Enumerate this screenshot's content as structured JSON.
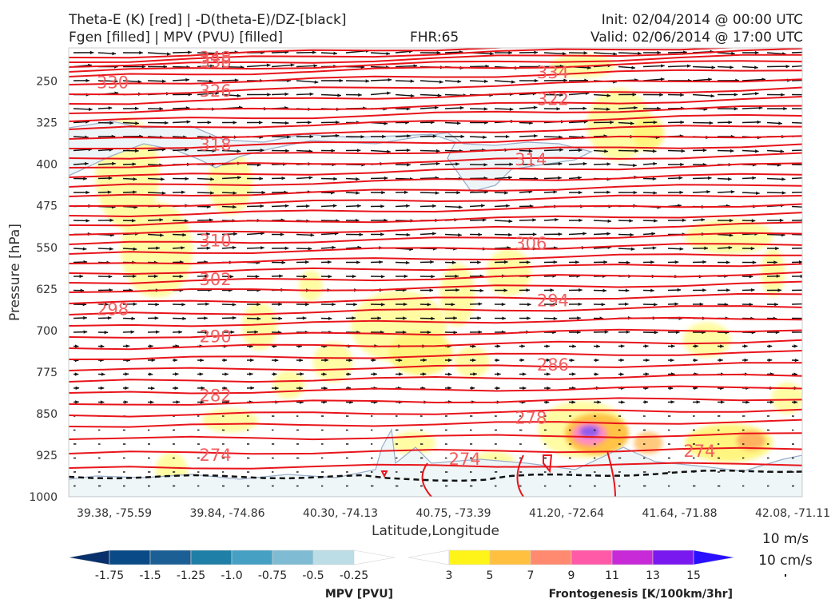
{
  "header": {
    "title_left_1": "Theta-E (K) [red] | -D(theta-E)/DZ-[black]",
    "title_left_2": "Fgen [filled] | MPV (PVU) [filled]",
    "fhr": "FHR:65",
    "init": "Init: 02/04/2014 @ 00:00 UTC",
    "valid": "Valid: 02/06/2014 @ 17:00 UTC"
  },
  "chart_data": {
    "type": "cross-section",
    "xlabel": "Latitude,Longitude",
    "ylabel": "Pressure [hPa]",
    "x_ticks": [
      "39.38, -75.59",
      "39.84, -74.86",
      "40.30, -74.13",
      "40.75, -73.39",
      "41.20, -72.64",
      "41.64, -71.88",
      "42.08, -71.11"
    ],
    "y_ticks": [
      250,
      325,
      400,
      475,
      550,
      625,
      700,
      775,
      850,
      925,
      1000
    ],
    "ylim": [
      1000,
      190
    ],
    "theta_e_contours": [
      {
        "label": "348",
        "p": 208,
        "pos": 0.2
      },
      {
        "label": "338",
        "p": 215,
        "pos": 0.2
      },
      {
        "label": "334",
        "p": 235,
        "pos": 0.66
      },
      {
        "label": "330",
        "p": 253,
        "pos": 0.06
      },
      {
        "label": "326",
        "p": 268,
        "pos": 0.2
      },
      {
        "label": "322",
        "p": 283,
        "pos": 0.66
      },
      {
        "label": "318",
        "p": 365,
        "pos": 0.2
      },
      {
        "label": "314",
        "p": 392,
        "pos": 0.63
      },
      {
        "label": "310",
        "p": 538,
        "pos": 0.2
      },
      {
        "label": "306",
        "p": 543,
        "pos": 0.63
      },
      {
        "label": "302",
        "p": 608,
        "pos": 0.2
      },
      {
        "label": "298",
        "p": 662,
        "pos": 0.06
      },
      {
        "label": "294",
        "p": 646,
        "pos": 0.66
      },
      {
        "label": "290",
        "p": 711,
        "pos": 0.2
      },
      {
        "label": "286",
        "p": 762,
        "pos": 0.66
      },
      {
        "label": "282",
        "p": 818,
        "pos": 0.2
      },
      {
        "label": "278",
        "p": 858,
        "pos": 0.63
      },
      {
        "label": "274",
        "p": 925,
        "pos": 0.2
      },
      {
        "label": "274",
        "p": 932,
        "pos": 0.54
      },
      {
        "label": "274",
        "p": 918,
        "pos": 0.86
      }
    ],
    "mpv_colorbar": {
      "title": "MPV [PVU]",
      "ticks": [
        "-1.75",
        "-1.5",
        "-1.25",
        "-1.0",
        "-0.75",
        "-0.5",
        "-0.25"
      ],
      "colors": [
        "#08306b",
        "#0a4a86",
        "#1c5f95",
        "#1f7fa6",
        "#45a0c4",
        "#7fbcd4",
        "#bcdde6",
        "#ffffff"
      ]
    },
    "fgen_colorbar": {
      "title": "Frontogenesis [K/100km/3hr]",
      "ticks": [
        "3",
        "5",
        "7",
        "9",
        "11",
        "13",
        "15"
      ],
      "colors": [
        "#ffffff",
        "#fff41a",
        "#ffc040",
        "#ff8a70",
        "#ff5aa8",
        "#c82ad8",
        "#7a18f0",
        "#2a10ff"
      ]
    },
    "reference_vector": {
      "horizontal": "10 m/s",
      "vertical": "10 cm/s"
    }
  }
}
